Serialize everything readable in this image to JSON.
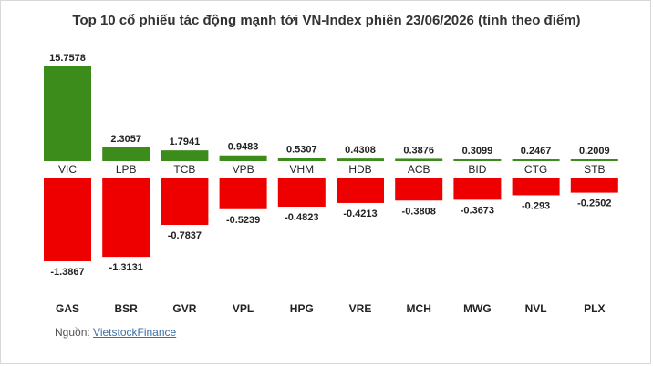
{
  "chart_data": {
    "type": "bar",
    "title": "Top 10 cổ phiếu tác động mạnh tới VN-Index phiên 23/06/2026 (tính theo điểm)",
    "positive": {
      "categories": [
        "VIC",
        "LPB",
        "TCB",
        "VPB",
        "VHM",
        "HDB",
        "ACB",
        "BID",
        "CTG",
        "STB"
      ],
      "values": [
        15.7578,
        2.3057,
        1.7941,
        0.9483,
        0.5307,
        0.4308,
        0.3876,
        0.3099,
        0.2467,
        0.2009
      ],
      "labels": [
        "15.7578",
        "2.3057",
        "1.7941",
        "0.9483",
        "0.5307",
        "0.4308",
        "0.3876",
        "0.3099",
        "0.2467",
        "0.2009"
      ],
      "color": "#3c8c1c"
    },
    "negative": {
      "categories": [
        "GAS",
        "BSR",
        "GVR",
        "VPL",
        "HPG",
        "VRE",
        "MCH",
        "MWG",
        "NVL",
        "PLX"
      ],
      "values": [
        -1.3867,
        -1.3131,
        -0.7837,
        -0.5239,
        -0.4823,
        -0.4213,
        -0.3808,
        -0.3673,
        -0.293,
        -0.2502
      ],
      "labels": [
        "-1.3867",
        "-1.3131",
        "-0.7837",
        "-0.5239",
        "-0.4823",
        "-0.4213",
        "-0.3808",
        "-0.3673",
        "-0.293",
        "-0.2502"
      ],
      "color": "#ee0000"
    },
    "ylim": [
      -1.3867,
      15.7578
    ]
  },
  "source": {
    "label": "Nguồn:",
    "link": "VietstockFinance"
  }
}
